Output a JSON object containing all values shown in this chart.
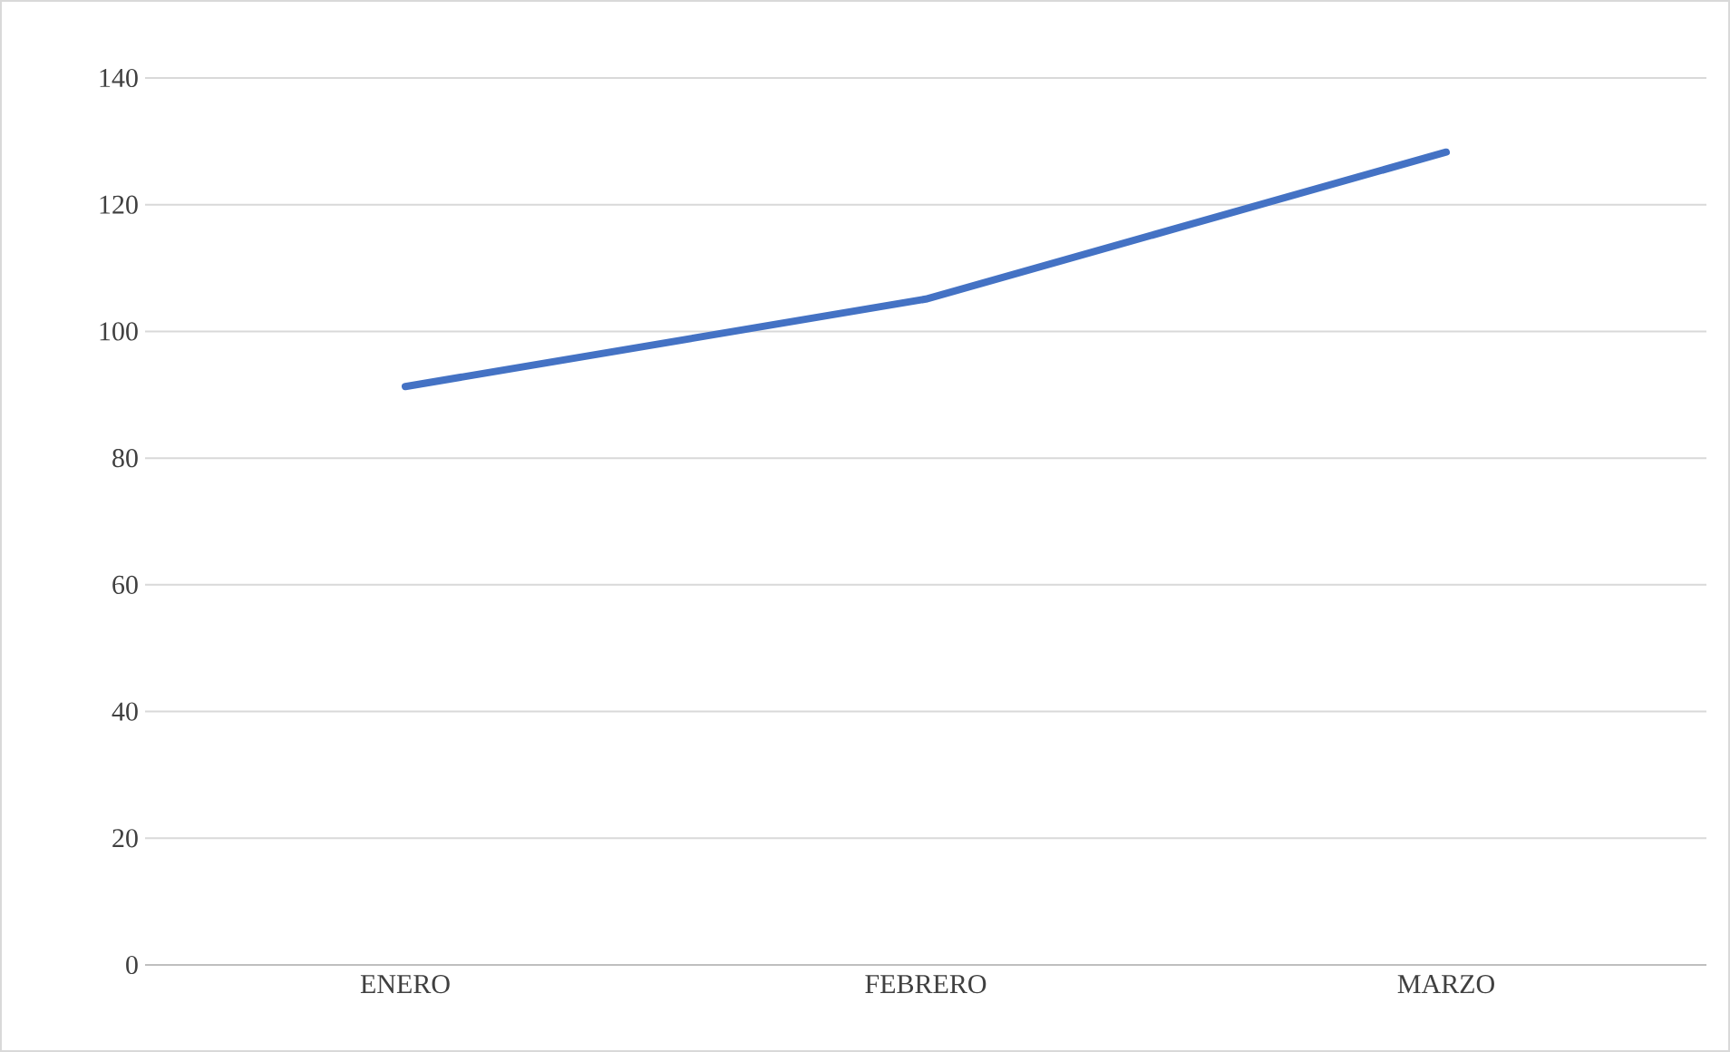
{
  "chart_data": {
    "type": "line",
    "categories": [
      "ENERO",
      "FEBRERO",
      "MARZO"
    ],
    "series": [
      {
        "color": "#4472c4",
        "values": [
          91.3,
          105.1,
          128.3
        ]
      }
    ],
    "ylim": [
      0,
      140
    ],
    "yticks": [
      0,
      20,
      40,
      60,
      80,
      100,
      120,
      140
    ],
    "grid": "y",
    "marker": "none",
    "line_style": "solid"
  }
}
